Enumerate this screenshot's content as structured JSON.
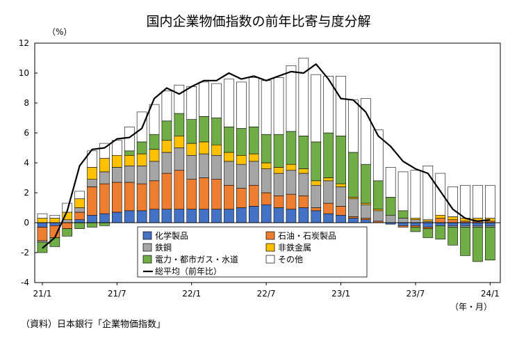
{
  "chart_data": {
    "type": "bar",
    "stacked": true,
    "title": "国内企業物価指数の前年比寄与度分解",
    "yunit": "（%）",
    "xunit": "（年・月）",
    "source": "（資料）日本銀行「企業物価指数」",
    "ylim": [
      -4,
      12
    ],
    "yticks": [
      "-4",
      "-2",
      "0",
      "2",
      "4",
      "6",
      "8",
      "10",
      "12"
    ],
    "grid": false,
    "legend_position": "bottom-center",
    "x_tick_labels": [
      {
        "index": 0,
        "label": "21/1"
      },
      {
        "index": 6,
        "label": "21/7"
      },
      {
        "index": 12,
        "label": "22/1"
      },
      {
        "index": 18,
        "label": "22/7"
      },
      {
        "index": 24,
        "label": "23/1"
      },
      {
        "index": 30,
        "label": "23/7"
      },
      {
        "index": 36,
        "label": "24/1"
      }
    ],
    "categories": [
      "21/1",
      "21/2",
      "21/3",
      "21/4",
      "21/5",
      "21/6",
      "21/7",
      "21/8",
      "21/9",
      "21/10",
      "21/11",
      "21/12",
      "22/1",
      "22/2",
      "22/3",
      "22/4",
      "22/5",
      "22/6",
      "22/7",
      "22/8",
      "22/9",
      "22/10",
      "22/11",
      "22/12",
      "23/1",
      "23/2",
      "23/3",
      "23/4",
      "23/5",
      "23/6",
      "23/7",
      "23/8",
      "23/9",
      "23/10",
      "23/11",
      "23/12",
      "24/1"
    ],
    "series": [
      {
        "name": "化学製品",
        "color": "#4472C4",
        "values": [
          -0.3,
          -0.2,
          0.0,
          0.2,
          0.5,
          0.6,
          0.7,
          0.8,
          0.8,
          0.9,
          0.9,
          0.9,
          0.9,
          0.9,
          0.9,
          0.9,
          1.0,
          1.1,
          1.2,
          1.0,
          0.9,
          1.0,
          0.8,
          0.6,
          0.5,
          0.3,
          0.2,
          0.0,
          -0.1,
          -0.2,
          -0.2,
          -0.3,
          -0.2,
          -0.2,
          -0.2,
          -0.2,
          -0.2
        ]
      },
      {
        "name": "石油・石炭製品",
        "color": "#ED7D31",
        "values": [
          -0.9,
          -0.8,
          -0.4,
          0.5,
          1.9,
          2.0,
          2.0,
          1.9,
          1.8,
          1.9,
          2.4,
          2.6,
          2.0,
          2.1,
          2.0,
          1.6,
          1.3,
          1.4,
          0.8,
          0.8,
          1.0,
          0.8,
          0.2,
          0.7,
          0.6,
          0.1,
          0.1,
          0.1,
          0.0,
          -0.1,
          -0.1,
          -0.1,
          0.3,
          0.2,
          0.1,
          0.1,
          0.1
        ]
      },
      {
        "name": "鉄鋼",
        "color": "#A5A5A5",
        "values": [
          -0.1,
          0.0,
          0.2,
          0.3,
          0.5,
          0.8,
          1.0,
          1.1,
          1.2,
          1.3,
          1.4,
          1.5,
          1.6,
          1.6,
          1.6,
          1.6,
          1.6,
          1.6,
          1.6,
          1.5,
          1.6,
          1.5,
          1.5,
          1.5,
          1.3,
          1.2,
          0.9,
          0.7,
          0.5,
          0.3,
          0.2,
          0.1,
          0.0,
          -0.1,
          -0.1,
          -0.1,
          -0.1
        ]
      },
      {
        "name": "非鉄金属",
        "color": "#FFC000",
        "values": [
          0.3,
          0.3,
          0.5,
          0.6,
          0.8,
          0.9,
          0.8,
          0.7,
          0.8,
          0.8,
          0.8,
          0.8,
          0.8,
          0.8,
          0.7,
          0.6,
          0.6,
          0.5,
          0.4,
          0.4,
          0.4,
          0.3,
          0.3,
          0.2,
          0.2,
          0.1,
          0.1,
          0.1,
          0.0,
          0.0,
          0.1,
          0.1,
          0.2,
          0.2,
          0.2,
          0.2,
          0.2
        ]
      },
      {
        "name": "電力・都市ガス・水道",
        "color": "#70AD47",
        "values": [
          -0.7,
          -0.6,
          -0.5,
          -0.4,
          -0.3,
          -0.2,
          0.0,
          0.3,
          0.8,
          1.0,
          1.3,
          1.5,
          1.6,
          1.7,
          1.8,
          1.7,
          1.8,
          1.8,
          1.9,
          2.2,
          2.2,
          2.2,
          2.6,
          3.0,
          3.2,
          3.0,
          2.6,
          1.9,
          1.2,
          0.5,
          -0.3,
          -0.6,
          -0.9,
          -1.2,
          -1.9,
          -2.3,
          -2.2
        ]
      },
      {
        "name": "その他",
        "color": "#FFFFFF",
        "values": [
          0.3,
          0.2,
          0.6,
          0.5,
          1.1,
          1.0,
          1.0,
          1.6,
          2.0,
          2.0,
          2.0,
          1.9,
          2.2,
          2.3,
          2.3,
          3.2,
          3.1,
          3.3,
          3.6,
          3.8,
          4.4,
          5.2,
          4.5,
          3.8,
          4.0,
          3.5,
          4.4,
          3.4,
          2.0,
          2.6,
          3.2,
          3.6,
          2.8,
          2.0,
          2.2,
          2.2,
          2.2
        ]
      },
      {
        "name": "総平均（前年比）",
        "type": "line",
        "color": "#000000",
        "values": [
          -1.7,
          -1.0,
          0.8,
          3.8,
          4.9,
          5.0,
          5.6,
          5.7,
          6.3,
          8.3,
          9.0,
          8.6,
          9.1,
          9.5,
          9.5,
          10.0,
          9.6,
          9.8,
          9.5,
          9.8,
          10.1,
          10.0,
          10.6,
          9.6,
          8.3,
          8.2,
          7.4,
          5.8,
          5.1,
          4.1,
          3.6,
          3.3,
          2.1,
          0.9,
          0.3,
          0.1,
          0.2
        ]
      }
    ]
  }
}
